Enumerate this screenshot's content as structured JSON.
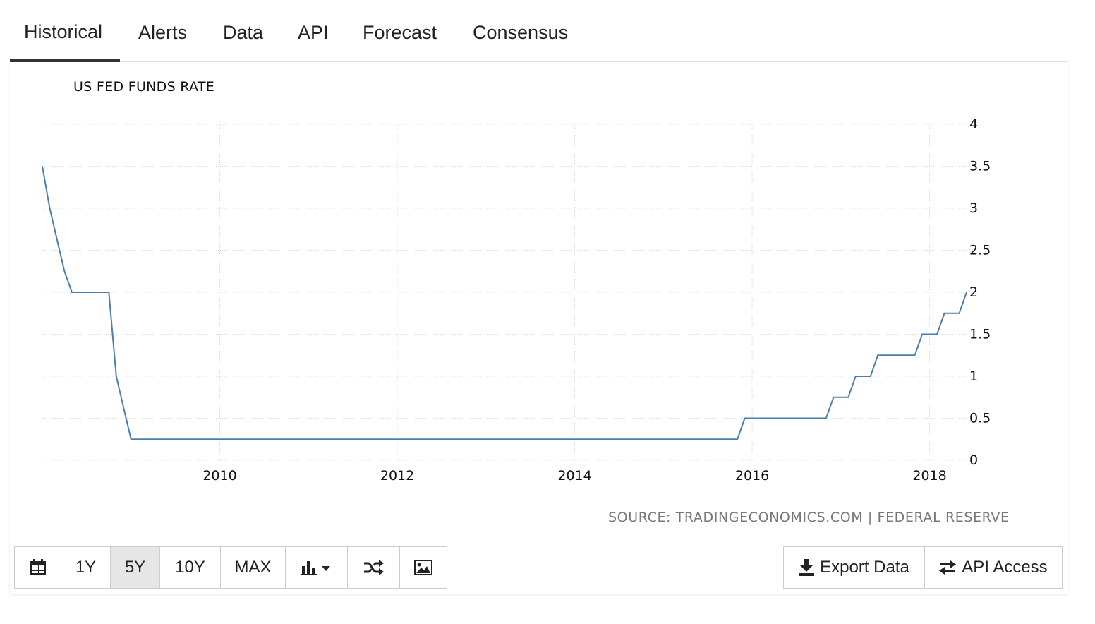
{
  "tabs": [
    {
      "label": "Historical",
      "active": true
    },
    {
      "label": "Alerts"
    },
    {
      "label": "Data"
    },
    {
      "label": "API"
    },
    {
      "label": "Forecast"
    },
    {
      "label": "Consensus"
    }
  ],
  "chart_data": {
    "type": "line",
    "title": "US FED FUNDS RATE",
    "source": "SOURCE: TRADINGECONOMICS.COM | FEDERAL RESERVE",
    "xlabel": "",
    "ylabel": "",
    "x_ticks": [
      "2010",
      "2012",
      "2014",
      "2016",
      "2018"
    ],
    "y_ticks": [
      "0",
      "0.5",
      "1",
      "1.5",
      "2",
      "2.5",
      "3",
      "3.5",
      "4"
    ],
    "ylim": [
      0,
      4
    ],
    "xlim": [
      "2008-01",
      "2018-06"
    ],
    "grid": true,
    "series": [
      {
        "color": "#4a7fad",
        "x": [
          "2008-01",
          "2008-02",
          "2008-03",
          "2008-04",
          "2008-05",
          "2008-06",
          "2008-10",
          "2008-11",
          "2008-12",
          "2009-01",
          "2015-11",
          "2015-12",
          "2016-11",
          "2016-12",
          "2017-02",
          "2017-03",
          "2017-05",
          "2017-06",
          "2017-11",
          "2017-12",
          "2018-02",
          "2018-03",
          "2018-05",
          "2018-06"
        ],
        "values": [
          3.5,
          3.0,
          2.62,
          2.25,
          2.0,
          2.0,
          2.0,
          1.0,
          0.62,
          0.25,
          0.25,
          0.5,
          0.5,
          0.75,
          0.75,
          1.0,
          1.0,
          1.25,
          1.25,
          1.5,
          1.5,
          1.75,
          1.75,
          2.0
        ]
      }
    ]
  },
  "controls": {
    "range_buttons": [
      {
        "icon": "calendar-icon"
      },
      {
        "label": "1Y"
      },
      {
        "label": "5Y",
        "active": true
      },
      {
        "label": "10Y"
      },
      {
        "label": "MAX"
      },
      {
        "icon": "bar-chart-dropdown-icon"
      },
      {
        "icon": "shuffle-icon"
      },
      {
        "icon": "image-icon"
      }
    ],
    "export_label": "Export Data",
    "api_label": "API Access"
  }
}
